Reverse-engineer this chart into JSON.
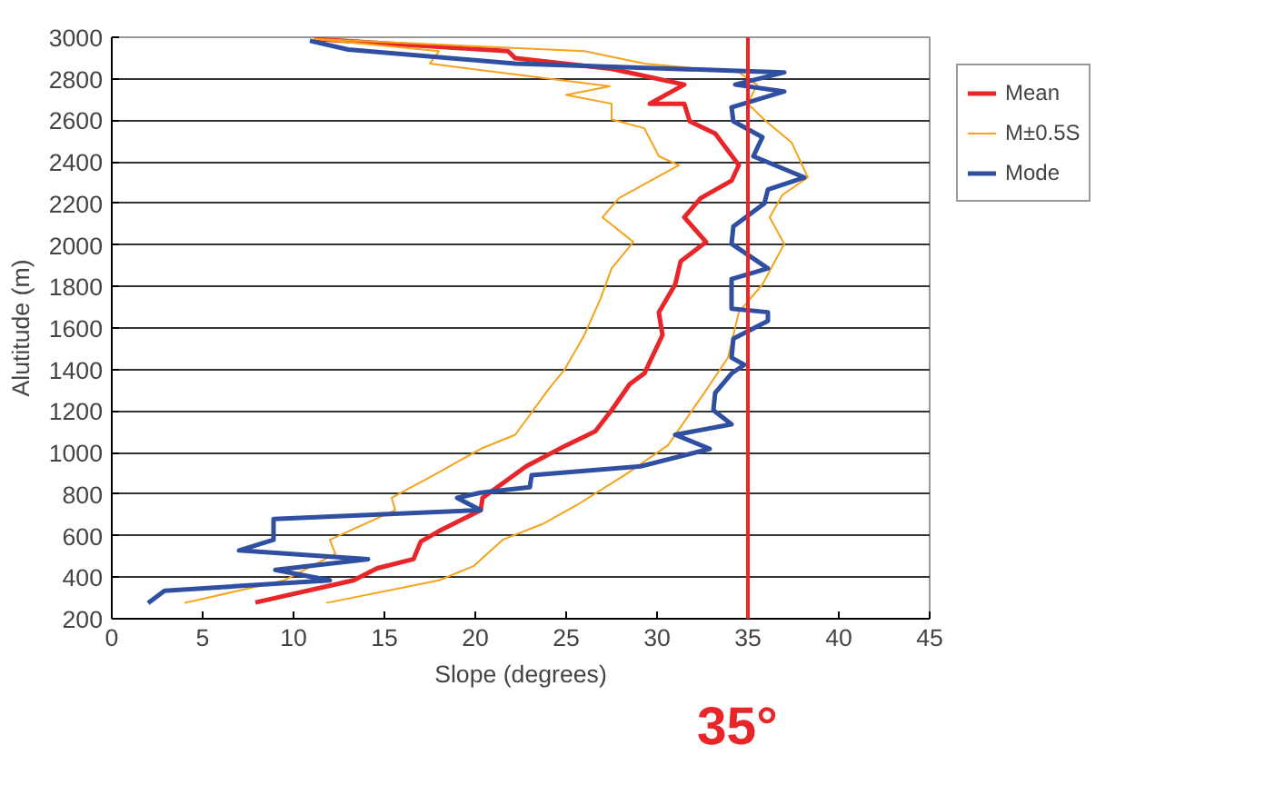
{
  "chart_data": {
    "type": "line",
    "xlabel": "Slope (degrees)",
    "ylabel": "Alutitude (m)",
    "xlim": [
      0,
      45
    ],
    "xticks": [
      0,
      5,
      10,
      15,
      20,
      25,
      30,
      35,
      40,
      45
    ],
    "ylim": [
      200,
      3000
    ],
    "yticks": [
      200,
      400,
      600,
      800,
      1000,
      1200,
      1400,
      1600,
      1800,
      2000,
      2200,
      2400,
      2600,
      2800,
      3000
    ],
    "grid": "y",
    "legend": "right",
    "line_style": "solid",
    "marker": "none",
    "ref_lines": [
      {
        "axis": "x",
        "value": 35,
        "label": "35°",
        "color": "#e8262a"
      }
    ],
    "series": [
      {
        "name": "Mean",
        "color": "#e8262a",
        "x": [
          7.9,
          13.3,
          14.6,
          16.6,
          17.0,
          18.0,
          20.3,
          20.4,
          22.8,
          25.0,
          26.6,
          27.5,
          28.5,
          29.3,
          30.3,
          30.1,
          31.0,
          31.3,
          32.7,
          31.5,
          32.4,
          34.1,
          34.5,
          33.2,
          31.8,
          31.5,
          29.6,
          31.5,
          27.5,
          22.2,
          21.8,
          11.1
        ],
        "values": [
          278,
          385,
          443,
          487,
          571,
          622,
          723,
          782,
          934,
          1035,
          1102,
          1204,
          1330,
          1381,
          1566,
          1675,
          1810,
          1921,
          2014,
          2133,
          2225,
          2309,
          2384,
          2536,
          2595,
          2680,
          2680,
          2772,
          2848,
          2899,
          2933,
          2992
        ]
      },
      {
        "name": "M±0.5S",
        "color": "#f7a21b",
        "x": [
          4.0,
          9.5,
          12.3,
          12.0,
          15.6,
          15.4,
          17.7,
          20.3,
          22.2,
          24.1,
          24.9,
          26.0,
          26.9,
          27.5,
          28.7,
          27.0,
          27.9,
          31.2,
          30.1,
          29.3,
          27.5,
          27.5,
          25.0,
          27.4,
          17.5,
          18.0,
          11.1
        ],
        "values": [
          276,
          385,
          512,
          580,
          723,
          782,
          891,
          1018,
          1086,
          1313,
          1398,
          1566,
          1743,
          1887,
          2014,
          2133,
          2225,
          2384,
          2427,
          2562,
          2604,
          2680,
          2722,
          2764,
          2873,
          2933,
          2992
        ]
      },
      {
        "color": "#f7a21b",
        "x": [
          11.8,
          18.0,
          19.9,
          21.5,
          23.7,
          25.6,
          28.2,
          30.6,
          32.6,
          33.9,
          34.5,
          35.8,
          37.0,
          36.2,
          36.9,
          38.3,
          37.4,
          36.0,
          35.0,
          35.5,
          34.5,
          29.3,
          26.0,
          11.1
        ],
        "values": [
          276,
          385,
          453,
          580,
          656,
          748,
          891,
          1035,
          1288,
          1457,
          1676,
          1810,
          2005,
          2133,
          2241,
          2325,
          2494,
          2595,
          2680,
          2772,
          2831,
          2873,
          2933,
          2992
        ]
      },
      {
        "name": "Mode",
        "color": "#2f4fa0",
        "x": [
          2.0,
          2.9,
          12.0,
          9.0,
          14.1,
          7.0,
          8.9,
          8.9,
          20.3,
          19.0,
          20.3,
          23.0,
          23.1,
          29.1,
          32.9,
          31.0,
          34.1,
          33.1,
          33.2,
          34.1,
          34.8,
          34.1,
          34.2,
          36.1,
          36.1,
          34.1,
          34.1,
          36.1,
          34.1,
          34.2,
          35.9,
          36.1,
          38.1,
          35.3,
          35.8,
          34.2,
          34.1,
          37.0,
          34.3,
          37.0,
          22.2,
          13.0,
          10.9
        ],
        "values": [
          276,
          335,
          385,
          435,
          487,
          529,
          580,
          680,
          723,
          782,
          807,
          833,
          891,
          934,
          1018,
          1086,
          1136,
          1204,
          1288,
          1381,
          1423,
          1457,
          1549,
          1634,
          1676,
          1693,
          1836,
          1887,
          2005,
          2089,
          2199,
          2267,
          2325,
          2427,
          2519,
          2595,
          2663,
          2739,
          2772,
          2831,
          2873,
          2941,
          2983
        ]
      }
    ]
  }
}
